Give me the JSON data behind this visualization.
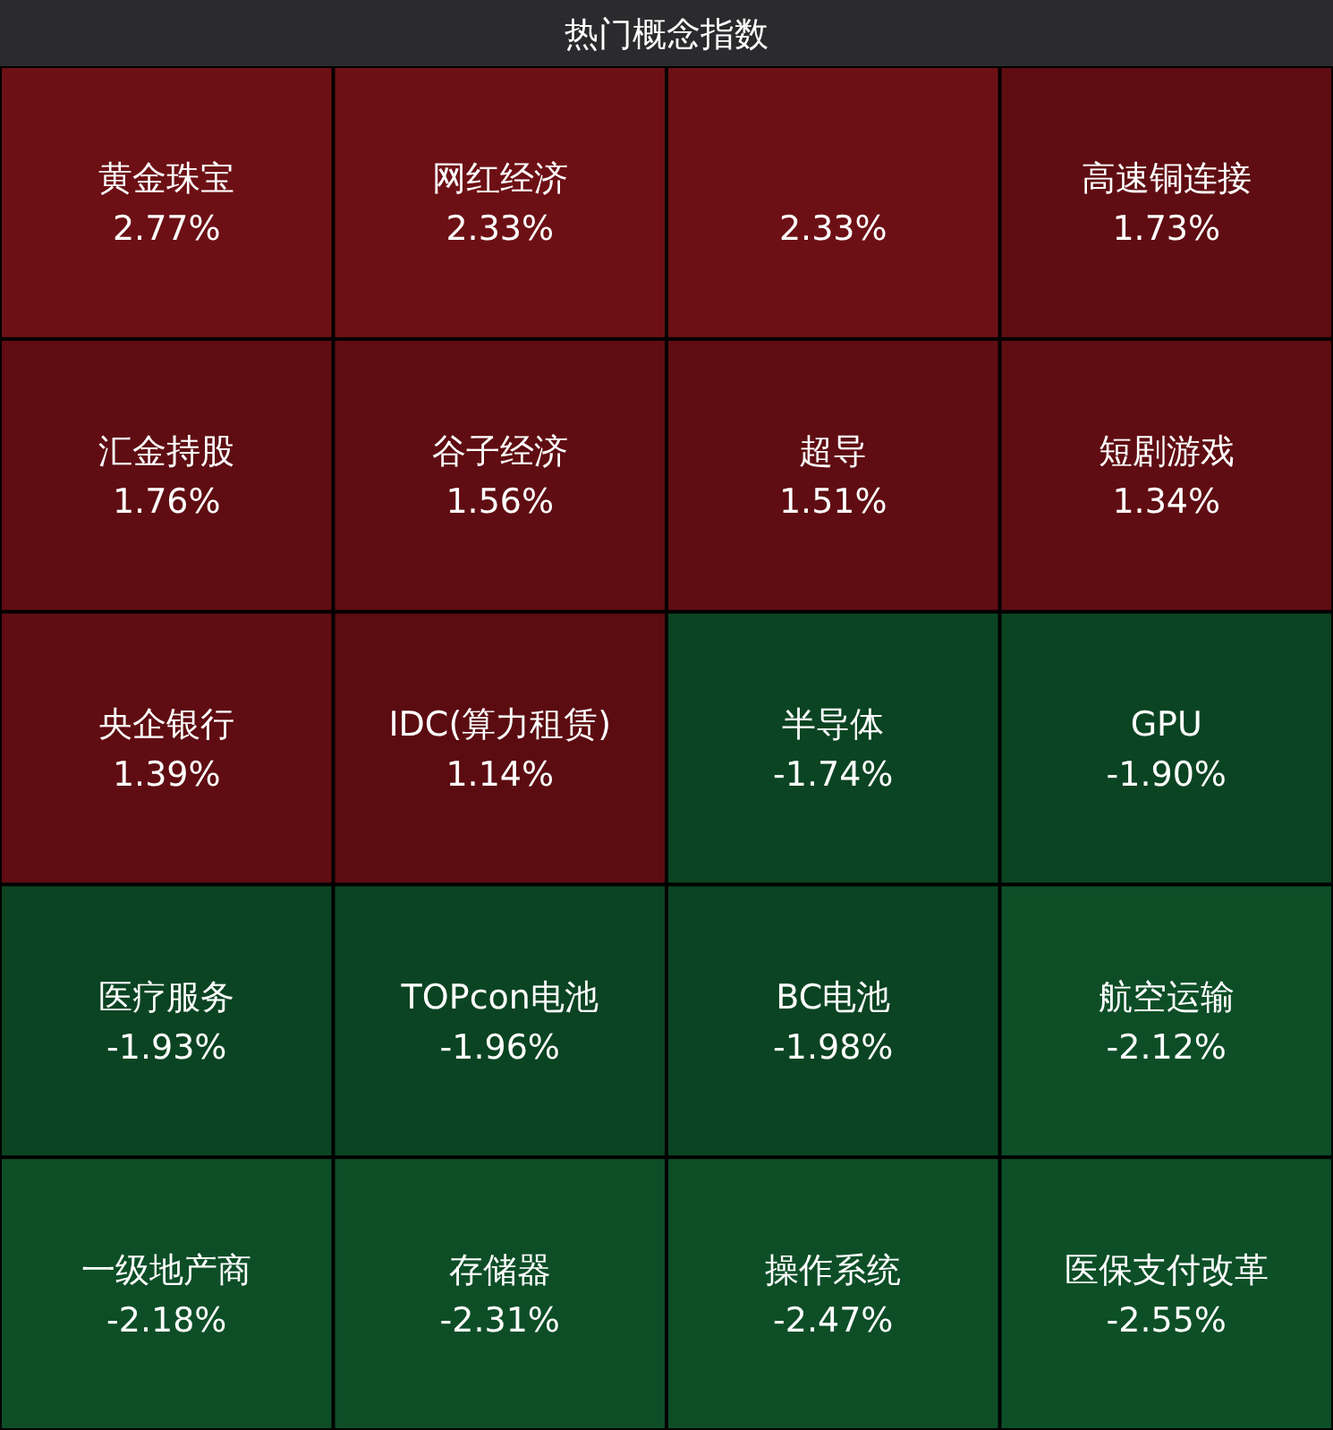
{
  "chart_data": {
    "type": "other",
    "title": "热门概念指数",
    "categories": [
      "黄金珠宝",
      "网红经济",
      null,
      "高速铜连接",
      "汇金持股",
      "谷子经济",
      "超导",
      "短剧游戏",
      "央企银行",
      "IDC(算力租赁)",
      "半导体",
      "GPU",
      "医疗服务",
      "TOPcon电池",
      "BC电池",
      "航空运输",
      "一级地产商",
      "存储器",
      "操作系统",
      "医保支付改革"
    ],
    "values": [
      2.77,
      2.33,
      2.33,
      1.73,
      1.76,
      1.56,
      1.51,
      1.34,
      1.39,
      1.14,
      -1.74,
      -1.9,
      -1.93,
      -1.96,
      -1.98,
      -2.12,
      -2.18,
      -2.31,
      -2.47,
      -2.55
    ],
    "value_labels": [
      "2.77%",
      "2.33%",
      "2.33%",
      "1.73%",
      "1.76%",
      "1.56%",
      "1.51%",
      "1.34%",
      "1.39%",
      "1.14%",
      "-1.74%",
      "-1.90%",
      "-1.93%",
      "-1.96%",
      "-1.98%",
      "-2.12%",
      "-2.18%",
      "-2.31%",
      "-2.47%",
      "-2.55%"
    ],
    "colors": [
      "#6e1015",
      "#6e1015",
      "#6e1015",
      "#600d12",
      "#600d12",
      "#600d12",
      "#600d12",
      "#600d12",
      "#600d12",
      "#5c0c11",
      "#0b4522",
      "#0b4522",
      "#0b4522",
      "#0b4522",
      "#0b4522",
      "#0d4f27",
      "#0d4f27",
      "#0d4f27",
      "#0d4f27",
      "#0d4f27"
    ]
  }
}
